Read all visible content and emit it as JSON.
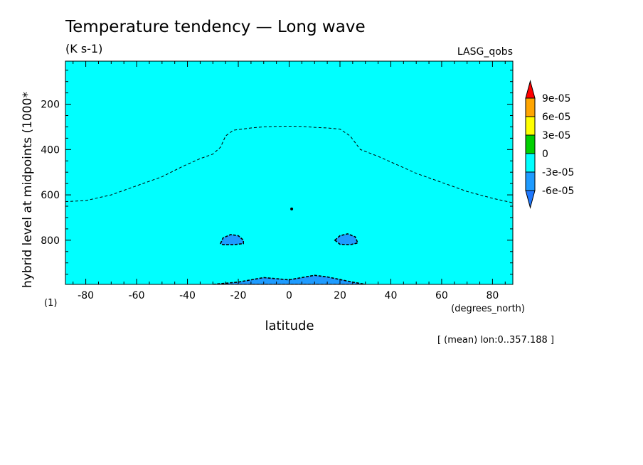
{
  "chart_data": {
    "type": "contour",
    "title": "Temperature tendency — Long wave",
    "units": "(K s-1)",
    "dataset": "LASG_qobs",
    "ylabel": "hybrid level at midpoints (1000*",
    "ylabel_scale": "(1)",
    "xlabel": "latitude",
    "x_units": "(degrees_north)",
    "subset": "[ (mean) lon:0..357.188 ]",
    "xlim": [
      -88,
      88
    ],
    "ylim": [
      995,
      10
    ],
    "y_reversed": true,
    "x_ticks": [
      -80,
      -60,
      -40,
      -20,
      0,
      20,
      40,
      60,
      80
    ],
    "x_tick_labels": [
      "-80",
      "-60",
      "-40",
      "-20",
      "0",
      "20",
      "40",
      "60",
      "80"
    ],
    "y_ticks": [
      200,
      400,
      600,
      800
    ],
    "y_tick_labels": [
      "200",
      "400",
      "600",
      "800"
    ],
    "background_level_color": "#00ffff",
    "colorbar": {
      "levels": [
        "9e-05",
        "6e-05",
        "3e-05",
        "0",
        "-3e-05",
        "-6e-05"
      ],
      "colors_top_to_bottom": [
        "#ff0000",
        "#ffa500",
        "#ffff00",
        "#00d000",
        "#00ffff",
        "#1e9bff",
        "#1e78ff"
      ]
    },
    "contours": [
      {
        "kind": "dashed-line",
        "level": "0",
        "points": [
          [
            -88,
            630
          ],
          [
            -80,
            625
          ],
          [
            -70,
            600
          ],
          [
            -60,
            560
          ],
          [
            -50,
            520
          ],
          [
            -42,
            475
          ],
          [
            -35,
            440
          ],
          [
            -30,
            420
          ],
          [
            -27,
            390
          ],
          [
            -25,
            340
          ],
          [
            -22,
            315
          ],
          [
            -15,
            305
          ],
          [
            -10,
            300
          ],
          [
            -5,
            298
          ],
          [
            0,
            297
          ],
          [
            5,
            298
          ],
          [
            10,
            302
          ],
          [
            15,
            305
          ],
          [
            20,
            310
          ],
          [
            24,
            340
          ],
          [
            28,
            400
          ],
          [
            35,
            430
          ],
          [
            42,
            465
          ],
          [
            50,
            505
          ],
          [
            60,
            545
          ],
          [
            70,
            585
          ],
          [
            80,
            615
          ],
          [
            88,
            635
          ]
        ]
      },
      {
        "kind": "filled-dashed",
        "level": "-3e-05",
        "points": [
          [
            -27,
            815
          ],
          [
            -26,
            790
          ],
          [
            -23,
            775
          ],
          [
            -20,
            780
          ],
          [
            -18,
            800
          ],
          [
            -18,
            815
          ],
          [
            -22,
            820
          ],
          [
            -26,
            820
          ]
        ]
      },
      {
        "kind": "filled-dashed",
        "level": "-3e-05",
        "points": [
          [
            18,
            800
          ],
          [
            20,
            780
          ],
          [
            23,
            772
          ],
          [
            26,
            785
          ],
          [
            27,
            812
          ],
          [
            24,
            820
          ],
          [
            20,
            818
          ]
        ]
      },
      {
        "kind": "filled-dashed",
        "level": "-3e-05",
        "points": [
          [
            -30,
            995
          ],
          [
            -20,
            985
          ],
          [
            -10,
            965
          ],
          [
            0,
            975
          ],
          [
            5,
            965
          ],
          [
            10,
            955
          ],
          [
            15,
            962
          ],
          [
            25,
            985
          ],
          [
            30,
            995
          ]
        ]
      },
      {
        "kind": "dot",
        "level": "0",
        "points": [
          [
            1,
            662
          ]
        ]
      }
    ]
  }
}
